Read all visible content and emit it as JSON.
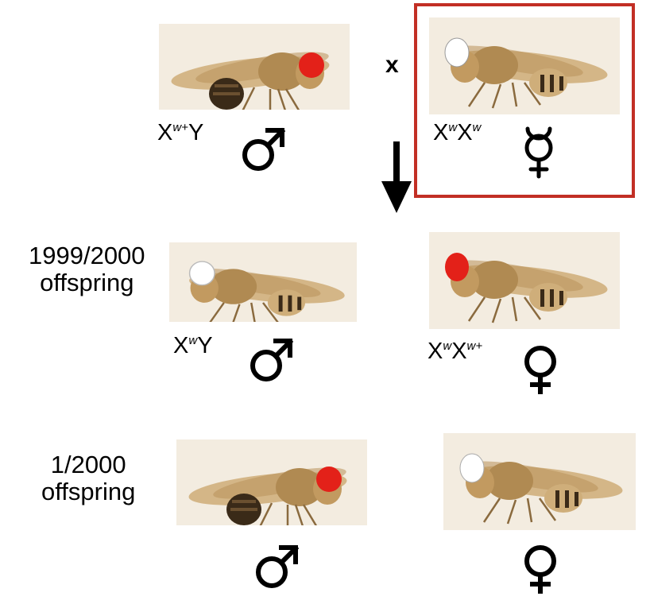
{
  "parents": {
    "cross_symbol": "x",
    "male": {
      "genotype_base": "X",
      "genotype_sup": "w+",
      "genotype_tail": "Y",
      "sex_symbol": "male-symbol-icon",
      "eye_color": "#e32119"
    },
    "female": {
      "genotype_x1": "X",
      "genotype_sup1": "w",
      "genotype_x2": "X",
      "genotype_sup2": "w",
      "sex_symbol": "hermaphrodite-symbol-icon",
      "eye_color": "#ffffff",
      "highlight_color": "#c22f25"
    }
  },
  "arrow_icon": "down-arrow-icon",
  "offspring_major": {
    "count_line1": "1999/2000",
    "count_line2": "offspring",
    "male": {
      "genotype_base": "X",
      "genotype_sup": "w",
      "genotype_tail": "Y",
      "eye_color": "#ffffff"
    },
    "female": {
      "genotype_x1": "X",
      "genotype_sup1": "w",
      "genotype_x2": "X",
      "genotype_sup2": "w+",
      "eye_color": "#e32119"
    }
  },
  "offspring_rare": {
    "count_line1": "1/2000",
    "count_line2": "offspring",
    "male": {
      "eye_color": "#e32119"
    },
    "female": {
      "eye_color": "#ffffff"
    }
  }
}
